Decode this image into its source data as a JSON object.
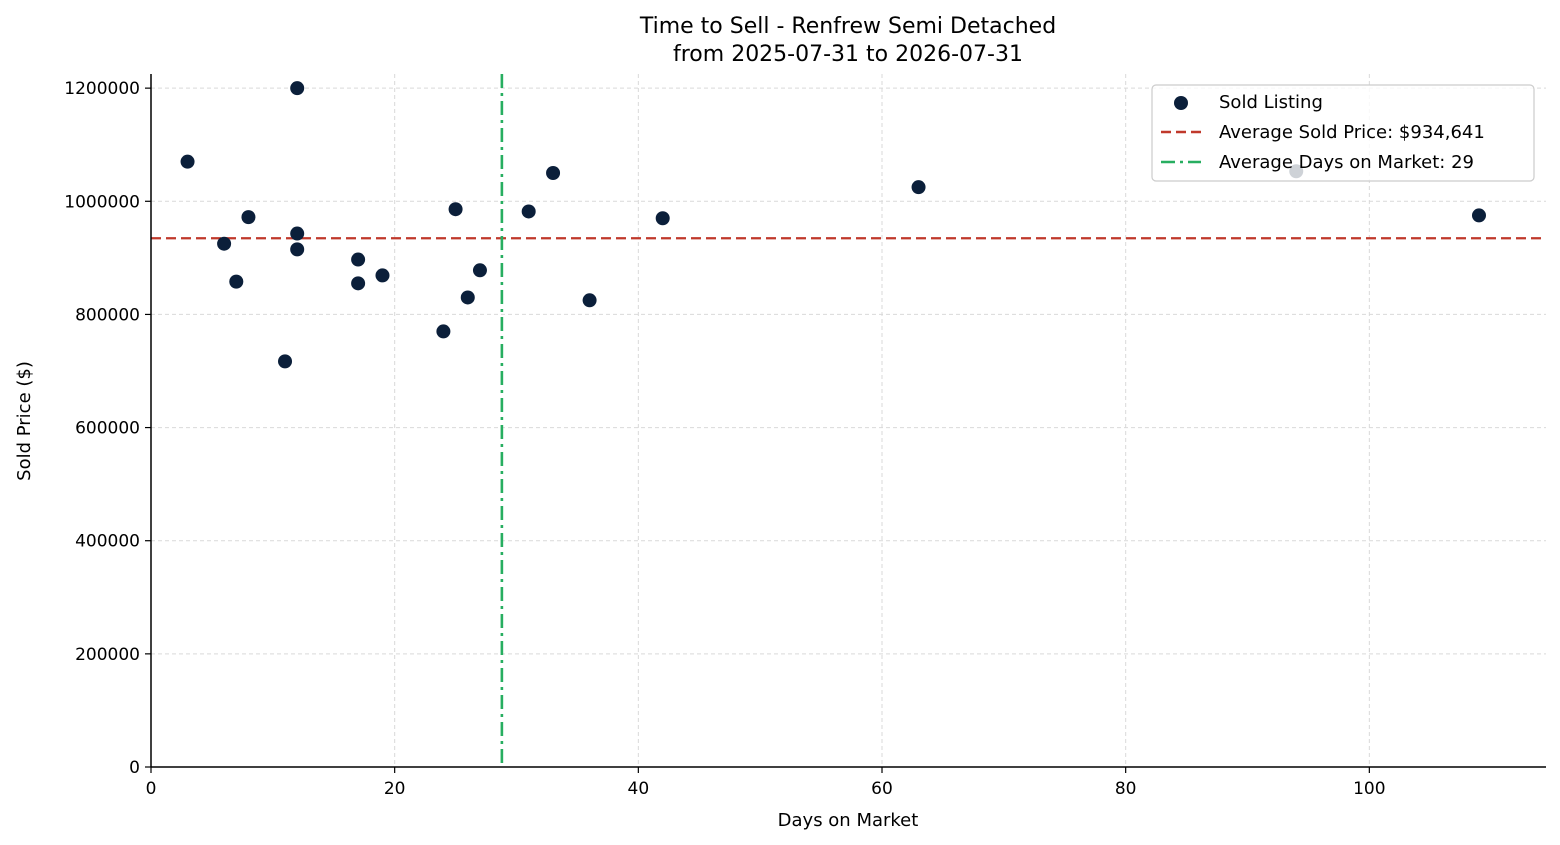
{
  "chart_data": {
    "type": "scatter",
    "title": "Time to Sell - Renfrew Semi Detached",
    "subtitle": "from 2025-07-31 to 2026-07-31",
    "xlabel": "Days on Market",
    "ylabel": "Sold Price ($)",
    "xlim": [
      0,
      114.5
    ],
    "ylim": [
      0,
      1225000
    ],
    "x_ticks": [
      0,
      20,
      40,
      60,
      80,
      100
    ],
    "y_ticks": [
      0,
      200000,
      400000,
      600000,
      800000,
      1000000,
      1200000
    ],
    "grid": true,
    "legend_position": "top-right",
    "series": [
      {
        "name": "Sold Listing",
        "color": "#0b1f3a",
        "points": [
          {
            "x": 3,
            "y": 1070000
          },
          {
            "x": 6,
            "y": 925000
          },
          {
            "x": 7,
            "y": 858000
          },
          {
            "x": 8,
            "y": 972000
          },
          {
            "x": 11,
            "y": 717000
          },
          {
            "x": 12,
            "y": 1200000
          },
          {
            "x": 12,
            "y": 943000
          },
          {
            "x": 12,
            "y": 915000
          },
          {
            "x": 17,
            "y": 897000
          },
          {
            "x": 17,
            "y": 855000
          },
          {
            "x": 19,
            "y": 869000
          },
          {
            "x": 24,
            "y": 770000
          },
          {
            "x": 25,
            "y": 986000
          },
          {
            "x": 26,
            "y": 830000
          },
          {
            "x": 27,
            "y": 878000
          },
          {
            "x": 31,
            "y": 982000
          },
          {
            "x": 33,
            "y": 1050000
          },
          {
            "x": 36,
            "y": 825000
          },
          {
            "x": 42,
            "y": 970000
          },
          {
            "x": 63,
            "y": 1025000
          },
          {
            "x": 94,
            "y": 1053000
          },
          {
            "x": 109,
            "y": 975000
          }
        ]
      }
    ],
    "reference_lines": [
      {
        "orientation": "horizontal",
        "value": 934641,
        "label": "Average Sold Price: $934,641",
        "color": "#c0392b",
        "style": "dashed"
      },
      {
        "orientation": "vertical",
        "value": 28.8,
        "label": "Average Days on Market: 29",
        "color": "#27ae60",
        "style": "dashdot"
      }
    ]
  }
}
